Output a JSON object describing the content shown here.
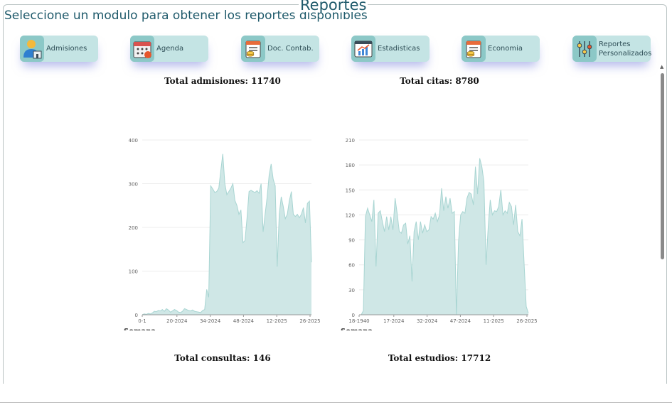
{
  "page": {
    "legend": "Reportes",
    "subtitle": "Seleccione un modulo para obtener los reportes disponibles"
  },
  "modules": [
    {
      "label": "Admisiones",
      "icon": "user-admission-icon"
    },
    {
      "label": "Agenda",
      "icon": "calendar-icon"
    },
    {
      "label": "Doc. Contab.",
      "icon": "accounting-document-icon"
    },
    {
      "label": "Estadisticas",
      "icon": "statistics-icon"
    },
    {
      "label": "Economia",
      "icon": "economy-icon"
    },
    {
      "label": "Reportes Personalizados",
      "icon": "sliders-icon"
    }
  ],
  "totals": {
    "admisiones": "Total admisiones: 11740",
    "citas": "Total citas: 8780",
    "consultas": "Total consultas: 146",
    "estudios": "Total estudios: 17712"
  },
  "colors": {
    "title": "#1f5a6b",
    "module_bg": "#c4e4e4",
    "icon_bg": "#8cc8c7",
    "area_fill": "#cfe7e6",
    "area_line": "#a8d5d2"
  },
  "chart_data": [
    {
      "type": "area",
      "title": "",
      "xlabel": "Semana",
      "ylabel": "",
      "ylim": [
        0,
        400
      ],
      "yticks": [
        0,
        100,
        200,
        300,
        400
      ],
      "xtick_labels": [
        "0-1",
        "20-2024",
        "34-2024",
        "48-2024",
        "12-2025",
        "26-2025"
      ],
      "values": [
        0,
        2,
        1,
        3,
        2,
        4,
        8,
        7,
        10,
        9,
        12,
        8,
        14,
        11,
        6,
        9,
        12,
        10,
        6,
        5,
        8,
        14,
        12,
        10,
        9,
        11,
        8,
        7,
        6,
        5,
        10,
        12,
        58,
        40,
        295,
        288,
        280,
        282,
        290,
        330,
        368,
        300,
        275,
        282,
        290,
        300,
        262,
        250,
        230,
        240,
        165,
        170,
        220,
        282,
        285,
        282,
        280,
        284,
        278,
        300,
        190,
        230,
        270,
        320,
        345,
        310,
        295,
        110,
        230,
        270,
        248,
        220,
        230,
        260,
        282,
        230,
        225,
        230,
        222,
        230,
        245,
        210,
        255,
        260,
        120
      ],
      "grid": true
    },
    {
      "type": "area",
      "title": "",
      "xlabel": "Semana",
      "ylabel": "",
      "ylim": [
        0,
        210
      ],
      "yticks": [
        0,
        30,
        60,
        90,
        120,
        150,
        180,
        210
      ],
      "xtick_labels": [
        "18-1940",
        "17-2024",
        "32-2024",
        "47-2024",
        "11-2025",
        "26-2025"
      ],
      "values": [
        0,
        0,
        5,
        118,
        128,
        120,
        112,
        138,
        58,
        122,
        125,
        112,
        100,
        118,
        102,
        118,
        102,
        140,
        122,
        100,
        98,
        108,
        110,
        85,
        95,
        40,
        100,
        112,
        90,
        112,
        98,
        108,
        100,
        102,
        118,
        115,
        122,
        112,
        120,
        152,
        125,
        142,
        128,
        140,
        122,
        124,
        0,
        88,
        120,
        124,
        122,
        140,
        147,
        145,
        132,
        178,
        145,
        188,
        178,
        160,
        60,
        105,
        138,
        120,
        125,
        124,
        130,
        150,
        120,
        125,
        122,
        135,
        130,
        108,
        132,
        100,
        95,
        115,
        60,
        10,
        2
      ],
      "grid": true
    }
  ]
}
